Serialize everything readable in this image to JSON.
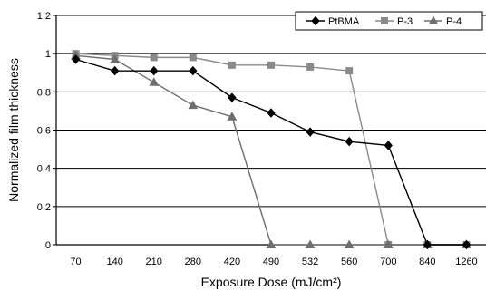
{
  "chart_data": {
    "type": "line",
    "title": "",
    "xlabel": "Exposure Dose (mJ/cm²)",
    "ylabel": "Normalized film thickness",
    "categories": [
      "70",
      "140",
      "210",
      "280",
      "420",
      "490",
      "532",
      "560",
      "700",
      "840",
      "1260"
    ],
    "ylim": [
      0,
      1.2
    ],
    "yticks": [
      "0",
      "0.2",
      "0.4",
      "0.6",
      "0.8",
      "1",
      "1,2"
    ],
    "grid": "horizontal",
    "legend_position": "top-right",
    "series": [
      {
        "name": "PtBMA",
        "marker": "diamond",
        "color": "#000000",
        "values": [
          0.97,
          0.91,
          0.91,
          0.91,
          0.77,
          0.69,
          0.59,
          0.54,
          0.52,
          0,
          0
        ]
      },
      {
        "name": "P-3",
        "marker": "square",
        "color": "#8a8a8a",
        "values": [
          1.0,
          0.99,
          0.98,
          0.98,
          0.94,
          0.94,
          0.93,
          0.91,
          0,
          0,
          0
        ]
      },
      {
        "name": "P-4",
        "marker": "triangle",
        "color": "#6e6e6e",
        "values": [
          0.99,
          0.97,
          0.85,
          0.73,
          0.67,
          0,
          0,
          0,
          0,
          0,
          0
        ]
      }
    ]
  }
}
